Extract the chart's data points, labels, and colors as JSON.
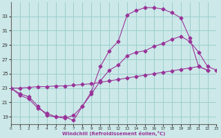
{
  "xlabel": "Windchill (Refroidissement éolien,°C)",
  "bg_color": "#cce8e8",
  "grid_color": "#9ccece",
  "line_color": "#993399",
  "x_hours": [
    0,
    1,
    2,
    3,
    4,
    5,
    6,
    7,
    8,
    9,
    10,
    11,
    12,
    13,
    14,
    15,
    16,
    17,
    18,
    19,
    20,
    21,
    22,
    23
  ],
  "series1": [
    23.0,
    22.2,
    21.8,
    20.5,
    19.2,
    19.0,
    19.0,
    18.5,
    20.5,
    22.2,
    24.0,
    25.5,
    26.2,
    27.5,
    28.0,
    28.2,
    28.8,
    29.2,
    29.8,
    30.2,
    29.5,
    28.0,
    26.0,
    25.5
  ],
  "series2": [
    23.0,
    22.0,
    21.5,
    20.2,
    19.5,
    19.0,
    18.8,
    19.2,
    20.5,
    22.5,
    26.0,
    28.2,
    29.5,
    33.2,
    33.8,
    34.2,
    34.2,
    34.0,
    33.5,
    32.8,
    30.0,
    26.0,
    25.5,
    null
  ],
  "series3": [
    23.0,
    23.0,
    23.1,
    23.2,
    23.2,
    23.3,
    23.3,
    23.4,
    23.5,
    23.6,
    23.8,
    24.0,
    24.2,
    24.4,
    24.6,
    24.8,
    25.0,
    25.2,
    25.4,
    25.6,
    25.8,
    26.0,
    25.5,
    null
  ],
  "ylim": [
    18,
    35
  ],
  "yticks": [
    19,
    21,
    23,
    25,
    27,
    29,
    31,
    33
  ],
  "xlim": [
    0,
    23
  ],
  "xticks": [
    0,
    1,
    2,
    3,
    4,
    5,
    6,
    7,
    8,
    9,
    10,
    11,
    12,
    13,
    14,
    15,
    16,
    17,
    18,
    19,
    20,
    21,
    22,
    23
  ]
}
